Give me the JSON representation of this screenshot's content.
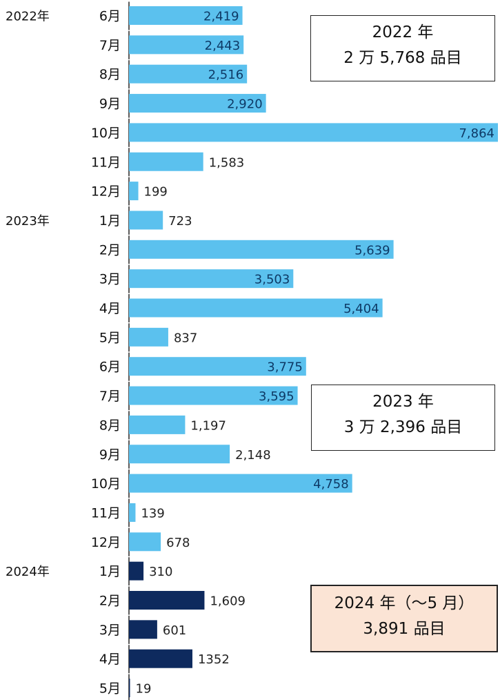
{
  "chart_data": {
    "type": "bar",
    "orientation": "horizontal",
    "series": [
      {
        "color": "#5bc1ee",
        "year_label": "2022年",
        "categories": [
          "6月",
          "7月",
          "8月",
          "9月",
          "10月",
          "11月",
          "12月"
        ],
        "values": [
          2419,
          2443,
          2516,
          2920,
          7864,
          1583,
          199
        ],
        "labels": [
          "2,419",
          "2,443",
          "2,516",
          "2,920",
          "7,864",
          "1,583",
          "199"
        ]
      },
      {
        "color": "#5bc1ee",
        "year_label": "2023年",
        "categories": [
          "1月",
          "2月",
          "3月",
          "4月",
          "5月",
          "6月",
          "7月",
          "8月",
          "9月",
          "10月",
          "11月",
          "12月"
        ],
        "values": [
          723,
          5639,
          3503,
          5404,
          837,
          3775,
          3595,
          1197,
          2148,
          4758,
          139,
          678
        ],
        "labels": [
          "723",
          "5,639",
          "3,503",
          "5,404",
          "837",
          "3,775",
          "3,595",
          "1,197",
          "2,148",
          "4,758",
          "139",
          "678"
        ]
      },
      {
        "color": "#0e2a5e",
        "year_label": "2024年",
        "categories": [
          "1月",
          "2月",
          "3月",
          "4月",
          "5月"
        ],
        "values": [
          310,
          1609,
          601,
          1352,
          19
        ],
        "labels": [
          "310",
          "1,609",
          "601",
          "1352",
          "19"
        ]
      }
    ],
    "xlim": [
      0,
      7864
    ],
    "grid": false,
    "annotations": [
      {
        "line1": "2022 年",
        "line2": "2 万 5,768 品目"
      },
      {
        "line1": "2023 年",
        "line2": "3 万 2,396 品目"
      },
      {
        "line1": "2024 年（～5 月）",
        "line2": "3,891 品目",
        "highlight": true,
        "fill": "#fbe4d5"
      }
    ]
  }
}
